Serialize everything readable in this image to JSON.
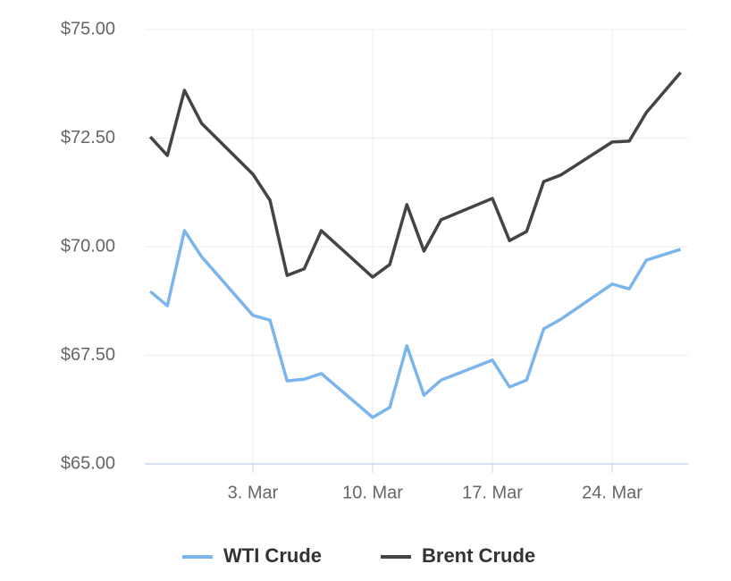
{
  "chart_data": {
    "type": "line",
    "x": [
      -3,
      -2,
      -1,
      0,
      3,
      4,
      5,
      6,
      7,
      10,
      11,
      12,
      13,
      14,
      17,
      18,
      19,
      20,
      21,
      24,
      25,
      26,
      28
    ],
    "series": [
      {
        "name": "WTI Crude",
        "color": "#7cb5ec",
        "values": [
          68.97,
          68.64,
          70.37,
          69.77,
          68.42,
          68.31,
          66.91,
          66.95,
          67.08,
          66.07,
          66.3,
          67.72,
          66.58,
          66.93,
          67.39,
          66.77,
          66.93,
          68.11,
          68.33,
          69.14,
          69.03,
          69.69,
          69.94
        ]
      },
      {
        "name": "Brent Crude",
        "color": "#434348",
        "values": [
          72.53,
          72.1,
          73.6,
          72.84,
          71.67,
          71.07,
          69.34,
          69.49,
          70.37,
          69.3,
          69.59,
          70.97,
          69.9,
          70.62,
          71.11,
          70.14,
          70.35,
          71.5,
          71.65,
          72.41,
          72.43,
          73.09,
          74.01
        ]
      }
    ],
    "xlim": [
      -3.32,
      28.44
    ],
    "xticks": [
      {
        "value": 3,
        "label": "3. Mar"
      },
      {
        "value": 10,
        "label": "10. Mar"
      },
      {
        "value": 17,
        "label": "17. Mar"
      },
      {
        "value": 24,
        "label": "24. Mar"
      }
    ],
    "ylim": [
      65,
      75
    ],
    "yticks": [
      {
        "value": 65,
        "label": "$65.00"
      },
      {
        "value": 67.5,
        "label": "$67.50"
      },
      {
        "value": 70,
        "label": "$70.00"
      },
      {
        "value": 72.5,
        "label": "$72.50"
      },
      {
        "value": 75,
        "label": "$75.00"
      }
    ],
    "grid": true,
    "legend": "bottom"
  }
}
